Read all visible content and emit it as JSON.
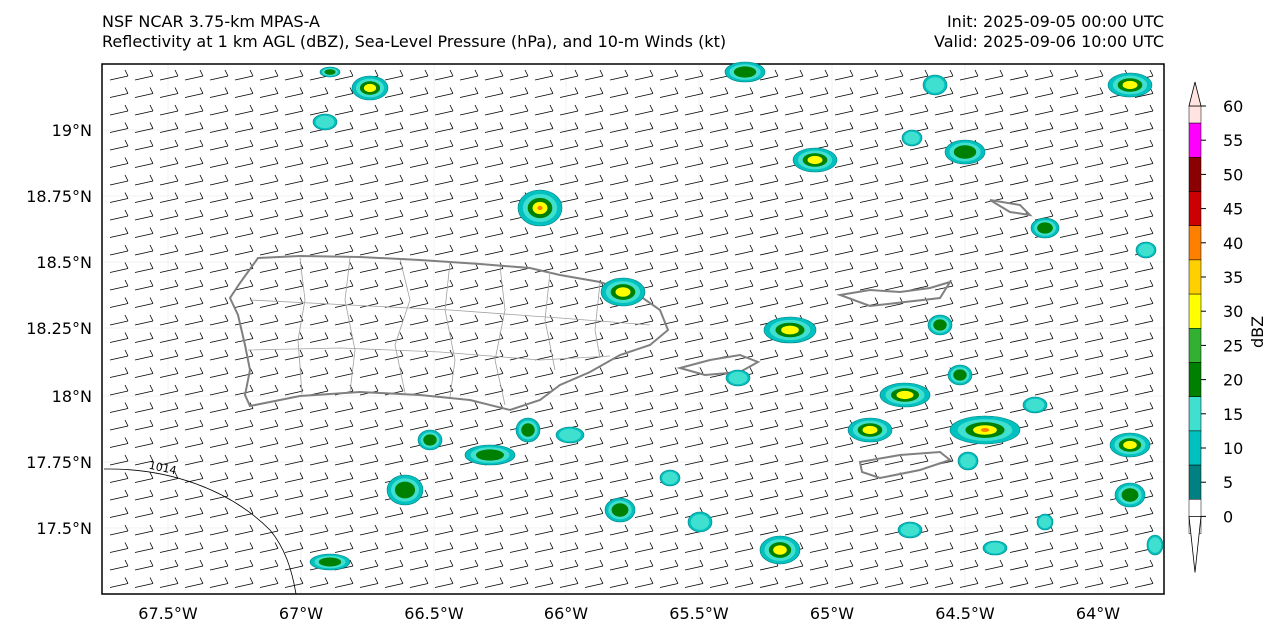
{
  "header": {
    "title_line1": "NSF NCAR 3.75-km MPAS-A",
    "title_line2": "Reflectivity at 1 km AGL (dBZ), Sea-Level Pressure (hPa), and 10-m Winds (kt)",
    "init": "Init: 2025-09-05 00:00 UTC",
    "valid": "Valid: 2025-09-06 10:00 UTC"
  },
  "map": {
    "lon_ticks": [
      "67.5°W",
      "67°W",
      "66.5°W",
      "66°W",
      "65.5°W",
      "65°W",
      "64.5°W",
      "64°W"
    ],
    "lat_ticks": [
      "19°N",
      "18.75°N",
      "18.5°N",
      "18.25°N",
      "18°N",
      "17.75°N",
      "17.5°N"
    ],
    "isobar_label": "1014"
  },
  "colorbar": {
    "label": "dBZ",
    "ticks": [
      "0",
      "5",
      "10",
      "15",
      "20",
      "25",
      "30",
      "35",
      "40",
      "45",
      "50",
      "55",
      "60"
    ],
    "colors": [
      "#ffffff",
      "#008080",
      "#00c0c0",
      "#40e0d0",
      "#008000",
      "#32b032",
      "#ffff00",
      "#ffd000",
      "#ff8000",
      "#cc0000",
      "#8b0000",
      "#ff00ff",
      "#ffe4e1"
    ]
  }
}
